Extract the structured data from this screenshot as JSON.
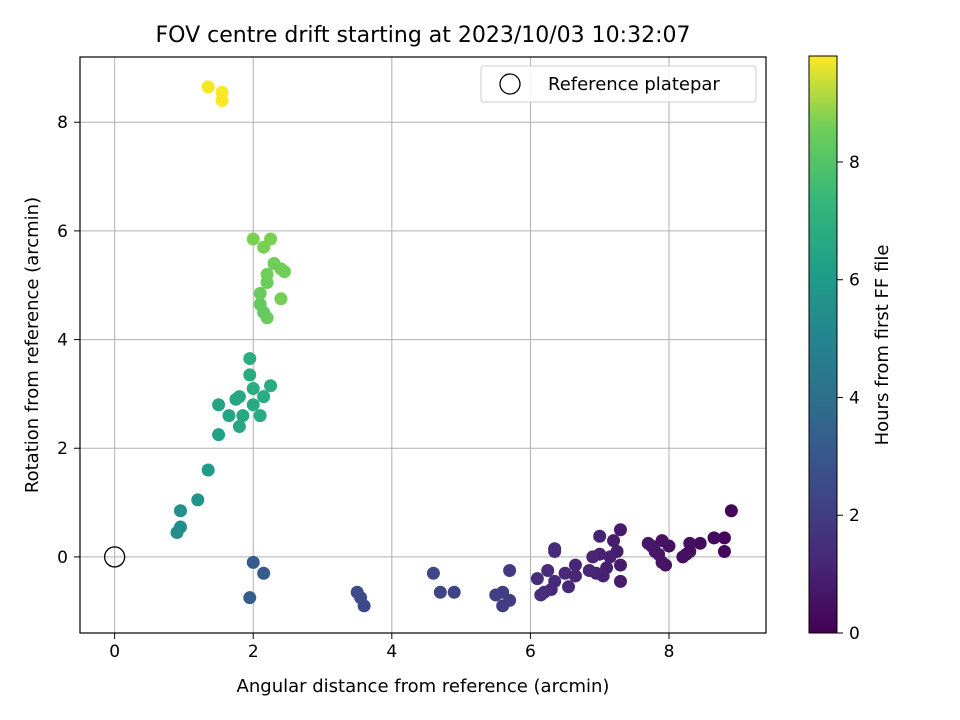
{
  "chart_data": {
    "type": "scatter",
    "title": "FOV centre drift starting at 2023/10/03 10:32:07",
    "xlabel": "Angular distance from reference (arcmin)",
    "ylabel": "Rotation from reference (arcmin)",
    "xlim": [
      -0.5,
      9.4
    ],
    "ylim": [
      -1.4,
      9.2
    ],
    "xticks": [
      0,
      2,
      4,
      6,
      8
    ],
    "yticks": [
      0,
      2,
      4,
      6,
      8
    ],
    "grid": true,
    "legend": {
      "position": "top-right",
      "entries": [
        {
          "label": "Reference platepar",
          "marker": "open-circle"
        }
      ]
    },
    "reference_point": {
      "name": "Reference platepar",
      "x": 0,
      "y": 0
    },
    "colorbar": {
      "label": "Hours from first FF file",
      "colormap": "viridis",
      "range": [
        0,
        9.8
      ],
      "ticks": [
        0,
        2,
        4,
        6,
        8
      ]
    },
    "points": [
      [
        8.9,
        0.85,
        0.1
      ],
      [
        8.8,
        0.35,
        0.15
      ],
      [
        8.8,
        0.1,
        0.2
      ],
      [
        8.65,
        0.35,
        0.25
      ],
      [
        8.45,
        0.25,
        0.3
      ],
      [
        8.3,
        0.25,
        0.35
      ],
      [
        8.3,
        0.1,
        0.35
      ],
      [
        8.2,
        0.0,
        0.4
      ],
      [
        8.25,
        0.05,
        0.4
      ],
      [
        8.0,
        0.2,
        0.45
      ],
      [
        7.95,
        -0.15,
        0.5
      ],
      [
        7.9,
        0.3,
        0.5
      ],
      [
        7.85,
        0.05,
        0.55
      ],
      [
        7.9,
        -0.1,
        0.55
      ],
      [
        7.8,
        0.1,
        0.6
      ],
      [
        7.75,
        0.2,
        0.6
      ],
      [
        7.7,
        0.25,
        0.65
      ],
      [
        7.3,
        0.5,
        0.7
      ],
      [
        7.3,
        -0.15,
        0.75
      ],
      [
        7.3,
        -0.45,
        0.75
      ],
      [
        7.25,
        0.1,
        0.8
      ],
      [
        7.2,
        0.3,
        0.8
      ],
      [
        7.15,
        0.0,
        0.85
      ],
      [
        7.1,
        -0.2,
        0.85
      ],
      [
        7.05,
        -0.35,
        0.9
      ],
      [
        7.0,
        0.05,
        0.9
      ],
      [
        7.0,
        0.38,
        0.95
      ],
      [
        6.95,
        -0.3,
        0.95
      ],
      [
        6.9,
        0.0,
        1.0
      ],
      [
        6.85,
        -0.25,
        1.0
      ],
      [
        6.65,
        -0.15,
        1.05
      ],
      [
        6.65,
        -0.35,
        1.05
      ],
      [
        6.55,
        -0.55,
        1.1
      ],
      [
        6.5,
        -0.3,
        1.1
      ],
      [
        6.35,
        0.1,
        1.15
      ],
      [
        6.35,
        0.15,
        1.15
      ],
      [
        6.35,
        -0.45,
        1.2
      ],
      [
        6.3,
        -0.6,
        1.2
      ],
      [
        6.25,
        -0.25,
        1.25
      ],
      [
        6.2,
        -0.65,
        1.25
      ],
      [
        6.15,
        -0.7,
        1.3
      ],
      [
        6.1,
        -0.4,
        1.3
      ],
      [
        5.7,
        -0.25,
        1.7
      ],
      [
        5.7,
        -0.8,
        1.75
      ],
      [
        5.6,
        -0.9,
        1.75
      ],
      [
        5.6,
        -0.65,
        1.8
      ],
      [
        5.5,
        -0.7,
        1.8
      ],
      [
        4.9,
        -0.65,
        2.0
      ],
      [
        4.7,
        -0.65,
        2.05
      ],
      [
        4.6,
        -0.3,
        2.1
      ],
      [
        3.6,
        -0.9,
        2.15
      ],
      [
        3.55,
        -0.75,
        2.2
      ],
      [
        3.5,
        -0.65,
        2.2
      ],
      [
        2.15,
        -0.3,
        2.8
      ],
      [
        2.0,
        -0.1,
        2.85
      ],
      [
        1.95,
        -0.75,
        2.9
      ],
      [
        0.95,
        0.55,
        4.75
      ],
      [
        0.9,
        0.45,
        4.8
      ],
      [
        0.95,
        0.85,
        4.9
      ],
      [
        1.2,
        1.05,
        5.1
      ],
      [
        1.35,
        1.6,
        5.35
      ],
      [
        1.5,
        2.25,
        5.6
      ],
      [
        1.5,
        2.8,
        5.7
      ],
      [
        1.65,
        2.6,
        5.75
      ],
      [
        1.75,
        2.9,
        5.8
      ],
      [
        1.8,
        2.95,
        5.85
      ],
      [
        1.8,
        2.4,
        5.85
      ],
      [
        1.85,
        2.6,
        5.9
      ],
      [
        2.0,
        2.8,
        5.95
      ],
      [
        2.1,
        2.6,
        5.95
      ],
      [
        2.15,
        2.95,
        6.0
      ],
      [
        2.25,
        3.15,
        6.0
      ],
      [
        2.0,
        3.1,
        6.05
      ],
      [
        1.95,
        3.35,
        6.05
      ],
      [
        1.95,
        3.65,
        6.1
      ],
      [
        2.1,
        4.65,
        7.4
      ],
      [
        2.15,
        4.5,
        7.45
      ],
      [
        2.2,
        4.4,
        7.5
      ],
      [
        2.1,
        4.85,
        7.5
      ],
      [
        2.2,
        5.05,
        7.55
      ],
      [
        2.2,
        5.2,
        7.6
      ],
      [
        2.3,
        5.4,
        7.6
      ],
      [
        2.4,
        5.3,
        7.65
      ],
      [
        2.45,
        5.25,
        7.65
      ],
      [
        2.4,
        4.75,
        7.7
      ],
      [
        2.15,
        5.7,
        7.75
      ],
      [
        2.25,
        5.85,
        7.8
      ],
      [
        2.0,
        5.85,
        7.8
      ],
      [
        1.35,
        8.65,
        9.7
      ],
      [
        1.55,
        8.55,
        9.75
      ],
      [
        1.55,
        8.4,
        9.75
      ]
    ]
  }
}
